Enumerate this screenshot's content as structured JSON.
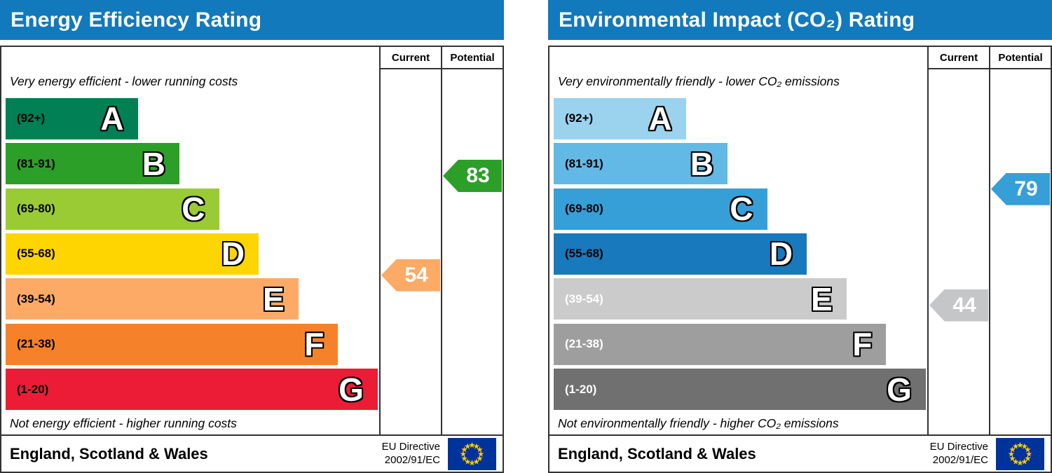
{
  "page": {
    "background": "#ffffff"
  },
  "chart_data": [
    {
      "type": "bar",
      "id": "energy-efficiency",
      "title": "Energy Efficiency Rating",
      "title_bg": "#1279bd",
      "column_headers": [
        "Current",
        "Potential"
      ],
      "top_note": "Very energy efficient - lower running costs",
      "bottom_note": "Not energy efficient - higher running costs",
      "footer_region": "England, Scotland & Wales",
      "footer_directive_line1": "EU Directive",
      "footer_directive_line2": "2002/91/EC",
      "categories": [
        "A",
        "B",
        "C",
        "D",
        "E",
        "F",
        "G"
      ],
      "bands": [
        {
          "letter": "A",
          "range_label": "(92+)",
          "lo": 92,
          "hi": 100,
          "color": "#008054",
          "label_color": "#000000",
          "width_pct": 35
        },
        {
          "letter": "B",
          "range_label": "(81-91)",
          "lo": 81,
          "hi": 91,
          "color": "#2c9f29",
          "label_color": "#000000",
          "width_pct": 46
        },
        {
          "letter": "C",
          "range_label": "(69-80)",
          "lo": 69,
          "hi": 80,
          "color": "#9acb35",
          "label_color": "#000000",
          "width_pct": 56.5
        },
        {
          "letter": "D",
          "range_label": "(55-68)",
          "lo": 55,
          "hi": 68,
          "color": "#ffd500",
          "label_color": "#000000",
          "width_pct": 67
        },
        {
          "letter": "E",
          "range_label": "(39-54)",
          "lo": 39,
          "hi": 54,
          "color": "#fcaa65",
          "label_color": "#000000",
          "width_pct": 77.5
        },
        {
          "letter": "F",
          "range_label": "(21-38)",
          "lo": 21,
          "hi": 38,
          "color": "#f5822a",
          "label_color": "#000000",
          "width_pct": 88
        },
        {
          "letter": "G",
          "range_label": "(1-20)",
          "lo": 1,
          "hi": 20,
          "color": "#ed1c36",
          "label_color": "#000000",
          "width_pct": 98.5
        }
      ],
      "series": [
        {
          "name": "Current",
          "value": 54,
          "arrow_color": "#fcaa65"
        },
        {
          "name": "Potential",
          "value": 83,
          "arrow_color": "#2c9f29"
        }
      ]
    },
    {
      "type": "bar",
      "id": "environmental-impact-co2",
      "title": "Environmental Impact (CO₂) Rating",
      "title_bg": "#1279bd",
      "column_headers": [
        "Current",
        "Potential"
      ],
      "top_note": "Very environmentally friendly - lower CO₂ emissions",
      "bottom_note": "Not environmentally friendly - higher CO₂ emissions",
      "footer_region": "England, Scotland & Wales",
      "footer_directive_line1": "EU Directive",
      "footer_directive_line2": "2002/91/EC",
      "categories": [
        "A",
        "B",
        "C",
        "D",
        "E",
        "F",
        "G"
      ],
      "bands": [
        {
          "letter": "A",
          "range_label": "(92+)",
          "lo": 92,
          "hi": 100,
          "color": "#9bd3ef",
          "label_color": "#000000",
          "width_pct": 35
        },
        {
          "letter": "B",
          "range_label": "(81-91)",
          "lo": 81,
          "hi": 91,
          "color": "#62b9e6",
          "label_color": "#000000",
          "width_pct": 46
        },
        {
          "letter": "C",
          "range_label": "(69-80)",
          "lo": 69,
          "hi": 80,
          "color": "#369fd8",
          "label_color": "#000000",
          "width_pct": 56.5
        },
        {
          "letter": "D",
          "range_label": "(55-68)",
          "lo": 55,
          "hi": 68,
          "color": "#1879bc",
          "label_color": "#000000",
          "width_pct": 67
        },
        {
          "letter": "E",
          "range_label": "(39-54)",
          "lo": 39,
          "hi": 54,
          "color": "#cbcbcb",
          "label_color": "#ffffff",
          "width_pct": 77.5
        },
        {
          "letter": "F",
          "range_label": "(21-38)",
          "lo": 21,
          "hi": 38,
          "color": "#9e9e9e",
          "label_color": "#ffffff",
          "width_pct": 88
        },
        {
          "letter": "G",
          "range_label": "(1-20)",
          "lo": 1,
          "hi": 20,
          "color": "#707070",
          "label_color": "#ffffff",
          "width_pct": 98.5
        }
      ],
      "series": [
        {
          "name": "Current",
          "value": 44,
          "arrow_color": "#c5c6c8"
        },
        {
          "name": "Potential",
          "value": 79,
          "arrow_color": "#369fd8"
        }
      ]
    }
  ],
  "eu_flag": {
    "background": "#003399",
    "star_color": "#ffcc00"
  }
}
